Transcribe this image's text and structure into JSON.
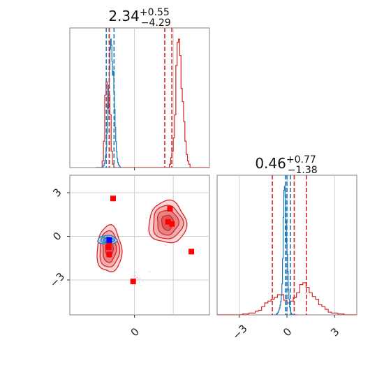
{
  "chart_data": [
    {
      "type": "histogram",
      "panel": "top-left",
      "title": {
        "value": "2.34",
        "plus": "+0.55",
        "minus": "−4.29"
      },
      "x_axis": {
        "ticks": []
      },
      "grid": true,
      "red_quantiles": [
        -1.95,
        2.34,
        2.89
      ],
      "blue_quantiles": [
        -2.18,
        -1.95,
        -1.58
      ],
      "series": [
        {
          "color": "#d62728",
          "bin_start": -3.0,
          "bin_width": 0.1,
          "counts": [
            0,
            0,
            0,
            0,
            0,
            2,
            8,
            22,
            26,
            18,
            22,
            16,
            5,
            1,
            0,
            0,
            0,
            0,
            0,
            0,
            0,
            0,
            0,
            0,
            0,
            0,
            0,
            0,
            0,
            0,
            0,
            0,
            0,
            0,
            0,
            0,
            0,
            0,
            0,
            0,
            0,
            0,
            0,
            0,
            0,
            0,
            0,
            0,
            0,
            0,
            0,
            0,
            0,
            0,
            0,
            0,
            0,
            1,
            3,
            5,
            9,
            16,
            31,
            38,
            39,
            34,
            24,
            20,
            14,
            8,
            4,
            2,
            1,
            0,
            0,
            0,
            0,
            0,
            0,
            0,
            0,
            0,
            0,
            0,
            0,
            0,
            0,
            0,
            0,
            0,
            0
          ]
        },
        {
          "color": "#1f77b4",
          "bin_start": -3.0,
          "bin_width": 0.05,
          "counts": [
            0,
            0,
            0,
            0,
            0,
            0,
            0,
            0,
            0,
            0,
            0,
            1,
            2,
            4,
            7,
            12,
            20,
            34,
            48,
            62,
            82,
            98,
            118,
            128,
            122,
            106,
            92,
            96,
            76,
            58,
            40,
            26,
            16,
            9,
            5,
            3,
            2,
            1,
            0,
            0,
            0
          ]
        }
      ]
    },
    {
      "type": "scatter",
      "panel": "bottom-left",
      "x_axis": {
        "ticks": [
          "0"
        ]
      },
      "y_axis": {
        "ticks": [
          "3",
          "0",
          "−3"
        ]
      },
      "grid": true,
      "contours": [
        {
          "color": "#d62728",
          "center": [
            -1.95,
            -0.9
          ],
          "radii": [
            [
              0.95,
              1.6
            ],
            [
              0.75,
              1.25
            ],
            [
              0.52,
              0.88
            ],
            [
              0.3,
              0.5
            ]
          ]
        },
        {
          "color": "#d62728",
          "center": [
            2.55,
            0.95
          ],
          "radii": [
            [
              1.45,
              1.45
            ],
            [
              1.15,
              1.15
            ],
            [
              0.82,
              0.85
            ],
            [
              0.45,
              0.52
            ]
          ]
        },
        {
          "color": "#1f77b4",
          "center": [
            -2.1,
            -0.25
          ],
          "radii": [
            [
              0.75,
              0.3
            ],
            [
              0.52,
              0.2
            ],
            [
              0.3,
              0.12
            ]
          ]
        }
      ],
      "red_markers": [
        [
          -1.65,
          2.6
        ],
        [
          -1.95,
          -0.35
        ],
        [
          -2.0,
          -0.75
        ],
        [
          -1.95,
          -1.25
        ],
        [
          -0.1,
          -3.1
        ],
        [
          2.75,
          1.9
        ],
        [
          2.6,
          1.0
        ],
        [
          2.9,
          0.85
        ],
        [
          4.4,
          -1.05
        ]
      ],
      "blue_markers": [
        [
          -1.95,
          -0.25
        ]
      ]
    },
    {
      "type": "histogram",
      "panel": "bottom-right",
      "title": {
        "value": "0.46",
        "plus": "+0.77",
        "minus": "−1.38"
      },
      "x_axis": {
        "ticks": [
          "−3",
          "0",
          "3"
        ]
      },
      "grid": true,
      "red_quantiles": [
        -0.92,
        0.46,
        1.23
      ],
      "blue_quantiles": [
        -0.1,
        0.0,
        0.22
      ],
      "series": [
        {
          "color": "#d62728",
          "bin_start": -4.4,
          "bin_width": 0.2,
          "counts": [
            0,
            0,
            0,
            0,
            0,
            0,
            0,
            0,
            1,
            1,
            2,
            2,
            4,
            5,
            9,
            13,
            15,
            17,
            19,
            22,
            22,
            16,
            13,
            15,
            19,
            24,
            33,
            35,
            30,
            24,
            20,
            17,
            11,
            9,
            6,
            3,
            2,
            2,
            1,
            1,
            0,
            0,
            0,
            0,
            0
          ]
        },
        {
          "color": "#1f77b4",
          "bin_start": -0.8,
          "bin_width": 0.04,
          "counts": [
            0,
            0,
            0,
            1,
            1,
            2,
            3,
            5,
            7,
            10,
            14,
            20,
            32,
            58,
            100,
            128,
            132,
            122,
            96,
            74,
            62,
            45,
            26,
            16,
            8,
            4,
            2,
            1,
            0,
            0,
            0,
            0,
            0,
            0,
            0,
            0
          ]
        }
      ]
    }
  ]
}
